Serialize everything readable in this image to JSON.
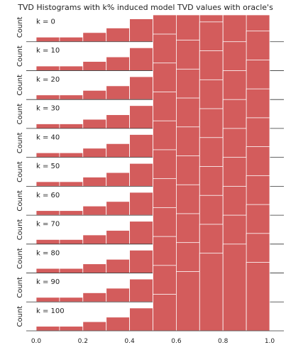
{
  "chart_data": {
    "type": "bar",
    "title": "TVD Histograms with k% induced model TVD values with oracle's",
    "ylabel": "Count",
    "xlim": [
      0.0,
      1.0
    ],
    "xticks": [
      "0.0",
      "0.2",
      "0.4",
      "0.6",
      "0.8",
      "1.0"
    ],
    "bin_edges": [
      0.0,
      0.1,
      0.2,
      0.3,
      0.4,
      0.5,
      0.6,
      0.7,
      0.8,
      0.9,
      1.0
    ],
    "bar_color": "#d35c5c",
    "panels": [
      {
        "label": "k = 0",
        "counts": [
          1,
          1,
          2,
          3,
          5,
          8,
          13,
          17,
          19,
          15
        ]
      },
      {
        "label": "k = 10",
        "counts": [
          1,
          1,
          2,
          3,
          5,
          8,
          13,
          17,
          19,
          15
        ]
      },
      {
        "label": "k = 20",
        "counts": [
          1,
          1,
          2,
          3,
          5,
          8,
          13,
          17,
          19,
          15
        ]
      },
      {
        "label": "k = 30",
        "counts": [
          1,
          1,
          2,
          3,
          5,
          8,
          13,
          17,
          19,
          15
        ]
      },
      {
        "label": "k = 40",
        "counts": [
          1,
          1,
          2,
          3,
          5,
          8,
          13,
          17,
          19,
          15
        ]
      },
      {
        "label": "k = 50",
        "counts": [
          1,
          1,
          2,
          3,
          5,
          8,
          13,
          17,
          19,
          15
        ]
      },
      {
        "label": "k = 60",
        "counts": [
          1,
          1,
          2,
          3,
          5,
          8,
          13,
          17,
          19,
          15
        ]
      },
      {
        "label": "k = 70",
        "counts": [
          1,
          1,
          2,
          3,
          5,
          8,
          13,
          17,
          19,
          15
        ]
      },
      {
        "label": "k = 80",
        "counts": [
          1,
          1,
          2,
          3,
          5,
          8,
          13,
          17,
          19,
          15
        ]
      },
      {
        "label": "k = 90",
        "counts": [
          1,
          1,
          2,
          3,
          5,
          8,
          13,
          17,
          19,
          15
        ]
      },
      {
        "label": "k = 100",
        "counts": [
          1,
          1,
          2,
          3,
          5,
          8,
          13,
          17,
          19,
          15
        ]
      }
    ]
  }
}
